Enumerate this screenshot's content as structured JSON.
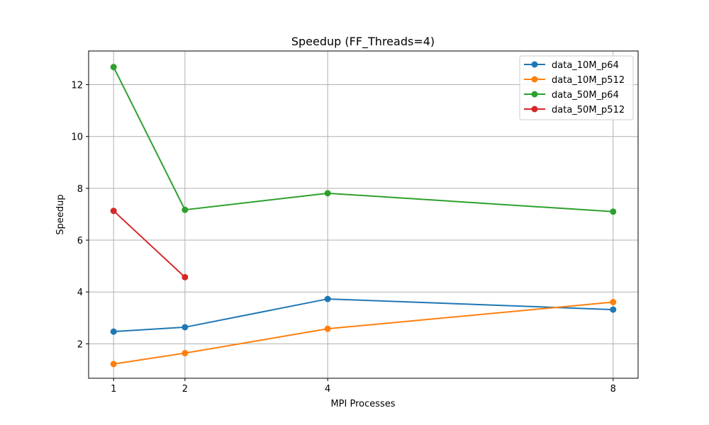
{
  "chart_data": {
    "type": "line",
    "title": "Speedup (FF_Threads=4)",
    "xlabel": "MPI Processes",
    "ylabel": "Speedup",
    "x_ticks": [
      1,
      2,
      4,
      8
    ],
    "y_ticks": [
      2,
      4,
      6,
      8,
      10,
      12
    ],
    "xlim": [
      0.65,
      8.35
    ],
    "ylim": [
      0.67,
      13.3
    ],
    "grid": true,
    "legend_position": "top-right",
    "series": [
      {
        "name": "data_10M_p64",
        "color": "#1f77b4",
        "x": [
          1,
          2,
          4,
          8
        ],
        "y": [
          2.47,
          2.64,
          3.73,
          3.32
        ]
      },
      {
        "name": "data_10M_p512",
        "color": "#ff7f0e",
        "x": [
          1,
          2,
          4,
          8
        ],
        "y": [
          1.22,
          1.64,
          2.58,
          3.61
        ]
      },
      {
        "name": "data_50M_p64",
        "color": "#2ca02c",
        "x": [
          1,
          2,
          4,
          8
        ],
        "y": [
          12.68,
          7.17,
          7.81,
          7.1
        ]
      },
      {
        "name": "data_50M_p512",
        "color": "#d62728",
        "x": [
          1,
          2
        ],
        "y": [
          7.13,
          4.57
        ]
      }
    ]
  }
}
